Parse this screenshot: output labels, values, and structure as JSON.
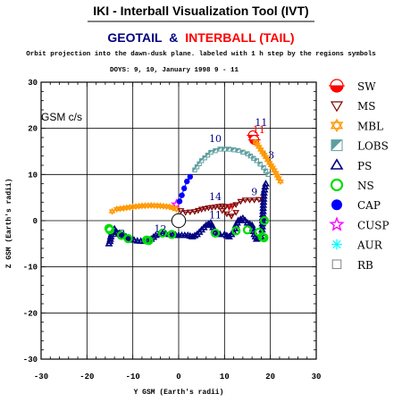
{
  "header": {
    "tool_title": "IKI - Interball Visualization Tool (IVT)",
    "mission_left": "GEOTAIL",
    "mission_amp": "&",
    "mission_right": "INTERBALL (TAIL)",
    "subtitle": "Orbit projection into the dawn-dusk plane. labeled with 1 h step by the regions symbols",
    "time_range": "DOYS: 9, 10,   January 1998 9 - 11"
  },
  "colors": {
    "geotail": "#000080",
    "interball": "#ff0000",
    "grid": "#000000"
  },
  "chart_data": {
    "type": "scatter",
    "frame_label": "GSM c/s",
    "xlabel": "Y GSM (Earth's radii)",
    "ylabel": "Z GSM (Earth's radii)",
    "xlim": [
      -30,
      30
    ],
    "ylim": [
      -30,
      30
    ],
    "x_ticks": [
      "-30",
      "-20",
      "-10",
      "0",
      "10",
      "20",
      "30"
    ],
    "y_ticks": [
      "30",
      "20",
      "10",
      "0",
      "-10",
      "-20",
      "-30"
    ],
    "grid": true,
    "legend_position": "right",
    "legend": [
      {
        "label": "SW",
        "icon": "half-filled-circle-icon",
        "color": "#ff0000"
      },
      {
        "label": "MS",
        "icon": "down-triangle-icon",
        "color": "#800000"
      },
      {
        "label": "MBL",
        "icon": "star-of-david-icon",
        "color": "#ff9900"
      },
      {
        "label": "LOBS",
        "icon": "half-square-icon",
        "color": "#5f9ea0"
      },
      {
        "label": "PS",
        "icon": "up-triangle-icon",
        "color": "#000080"
      },
      {
        "label": "NS",
        "icon": "ring-icon",
        "color": "#00dd00"
      },
      {
        "label": "CAP",
        "icon": "filled-circle-icon",
        "color": "#0000ff"
      },
      {
        "label": "CUSP",
        "icon": "star-icon",
        "color": "#ff00ff"
      },
      {
        "label": "AUR",
        "icon": "asterisk-icon",
        "color": "#00ffff"
      },
      {
        "label": "RB",
        "icon": "square-icon",
        "color": "#808080"
      }
    ],
    "earth": {
      "x": 0,
      "z": 0,
      "radius": 1
    },
    "series": [
      {
        "mission": "GEOTAIL",
        "color": "#000080",
        "segments": [
          {
            "region": "CUSP",
            "points": [
              [
                -0.5,
                3.5
              ]
            ]
          },
          {
            "region": "CAP",
            "points": [
              [
                0.2,
                4.2
              ],
              [
                0.7,
                5.5
              ],
              [
                1.2,
                7.0
              ],
              [
                1.8,
                8.5
              ],
              [
                2.5,
                9.5
              ]
            ]
          },
          {
            "region": "LOBS",
            "points": [
              [
                3.5,
                11.0
              ],
              [
                5,
                13.0
              ],
              [
                7,
                14.8
              ],
              [
                9,
                15.5
              ],
              [
                11,
                15.5
              ],
              [
                13,
                15.2
              ],
              [
                15,
                14.5
              ],
              [
                17,
                13.0
              ],
              [
                18.5,
                11.5
              ],
              [
                19.5,
                10.0
              ]
            ]
          },
          {
            "region": "PS",
            "points": [
              [
                19.0,
                8.0
              ],
              [
                18.6,
                6.0
              ],
              [
                18.5,
                4.0
              ],
              [
                18.4,
                2.0
              ],
              [
                18.3,
                0.0
              ],
              [
                18.2,
                -2.0
              ],
              [
                18.0,
                -3.5
              ],
              [
                17.0,
                -4.0
              ],
              [
                16.5,
                -3.0
              ],
              [
                16.0,
                -1.0
              ],
              [
                15.0,
                -0.5
              ],
              [
                14.0,
                0.5
              ],
              [
                13.0,
                0.0
              ],
              [
                12.5,
                -1.0
              ],
              [
                12.0,
                -2.5
              ],
              [
                11.0,
                -3.5
              ],
              [
                10.0,
                -3.0
              ],
              [
                9.0,
                -3.0
              ],
              [
                8.0,
                -2.5
              ],
              [
                7.5,
                -1.5
              ],
              [
                7.0,
                -0.5
              ],
              [
                6.0,
                -1.0
              ],
              [
                5.0,
                -2.0
              ],
              [
                4.0,
                -3.0
              ],
              [
                3.0,
                -3.5
              ],
              [
                2.0,
                -3.2
              ],
              [
                0.0,
                -3.2
              ],
              [
                -2.0,
                -3.0
              ],
              [
                -3.5,
                -2.8
              ],
              [
                -5.0,
                -3.2
              ],
              [
                -6.0,
                -4.0
              ],
              [
                -7.5,
                -4.5
              ],
              [
                -9.0,
                -4.4
              ],
              [
                -10.5,
                -4.0
              ],
              [
                -11.5,
                -3.5
              ],
              [
                -12.5,
                -3.0
              ],
              [
                -13.5,
                -2.5
              ],
              [
                -14.0,
                -1.8
              ],
              [
                -14.5,
                -2.5
              ],
              [
                -14.8,
                -3.5
              ],
              [
                -15.0,
                -4.5
              ],
              [
                -15.2,
                -5.0
              ]
            ]
          },
          {
            "region": "NS",
            "points": [
              [
                -15.2,
                -1.7
              ],
              [
                -15.0,
                -2.0
              ],
              [
                -12.5,
                -3.2
              ],
              [
                -11.0,
                -3.9
              ],
              [
                -7.0,
                -4.2
              ],
              [
                -6.5,
                -4.3
              ],
              [
                -3.5,
                -2.7
              ],
              [
                -1.5,
                -3.0
              ],
              [
                8.0,
                -2.7
              ],
              [
                12.5,
                -2.2
              ],
              [
                15.0,
                -2.0
              ],
              [
                17.5,
                -2.5
              ],
              [
                18.2,
                -3.5
              ],
              [
                18.6,
                -3.7
              ],
              [
                18.7,
                0.0
              ]
            ]
          }
        ],
        "hour_labels": [
          {
            "text": "10",
            "x": 8,
            "z": 17
          },
          {
            "text": "11",
            "x": 18,
            "z": 20.5
          },
          {
            "text": "12",
            "x": -4,
            "z": -2.5
          },
          {
            "text": "13",
            "x": -13,
            "z": -3.5
          },
          {
            "text": "13",
            "x": 19.5,
            "z": 13.5
          },
          {
            "text": "14",
            "x": 8,
            "z": 4.5
          },
          {
            "text": "11",
            "x": 8,
            "z": 0.5
          },
          {
            "text": "9",
            "x": 16.5,
            "z": 5.5
          }
        ]
      },
      {
        "mission": "INTERBALL (TAIL)",
        "color": "#ff0000",
        "segments": [
          {
            "region": "MBL",
            "points": [
              [
                -14.5,
                2.0
              ],
              [
                -13.5,
                2.5
              ],
              [
                -12,
                2.7
              ],
              [
                -10,
                3.0
              ],
              [
                -8,
                3.2
              ],
              [
                -6,
                3.3
              ],
              [
                -4,
                3.2
              ],
              [
                -2,
                3.0
              ],
              [
                -0.5,
                2.5
              ]
            ]
          },
          {
            "region": "MS",
            "points": [
              [
                0.5,
                2.2
              ],
              [
                1.5,
                1.8
              ],
              [
                3.5,
                2.0
              ],
              [
                5.0,
                2.5
              ],
              [
                6.5,
                2.8
              ],
              [
                8.0,
                3.0
              ],
              [
                9.5,
                3.2
              ],
              [
                11.0,
                3.0
              ],
              [
                12.5,
                3.5
              ],
              [
                13.5,
                4.2
              ],
              [
                14.5,
                4.5
              ],
              [
                15.5,
                4.5
              ],
              [
                16.5,
                4.5
              ],
              [
                17.5,
                4.6
              ]
            ]
          },
          {
            "region": "MS",
            "points": [
              [
                9.5,
                2.2
              ],
              [
                10.5,
                1.5
              ],
              [
                11.5,
                1.0
              ],
              [
                12.5,
                1.8
              ]
            ]
          },
          {
            "region": "SW",
            "points": [
              [
                16.2,
                18.5
              ],
              [
                16.5,
                17.5
              ]
            ]
          },
          {
            "region": "MBL",
            "points": [
              [
                16.8,
                17.0
              ],
              [
                17.5,
                16.0
              ],
              [
                18.3,
                14.8
              ],
              [
                19.0,
                13.8
              ],
              [
                19.8,
                12.5
              ],
              [
                20.5,
                11.5
              ],
              [
                21.2,
                10.3
              ],
              [
                21.8,
                9.2
              ],
              [
                22.2,
                8.5
              ]
            ]
          }
        ],
        "hour_labels": [
          {
            "text": "11",
            "x": 17.5,
            "z": 19
          },
          {
            "text": "9",
            "x": 11.3,
            "z": 2
          }
        ]
      }
    ]
  }
}
